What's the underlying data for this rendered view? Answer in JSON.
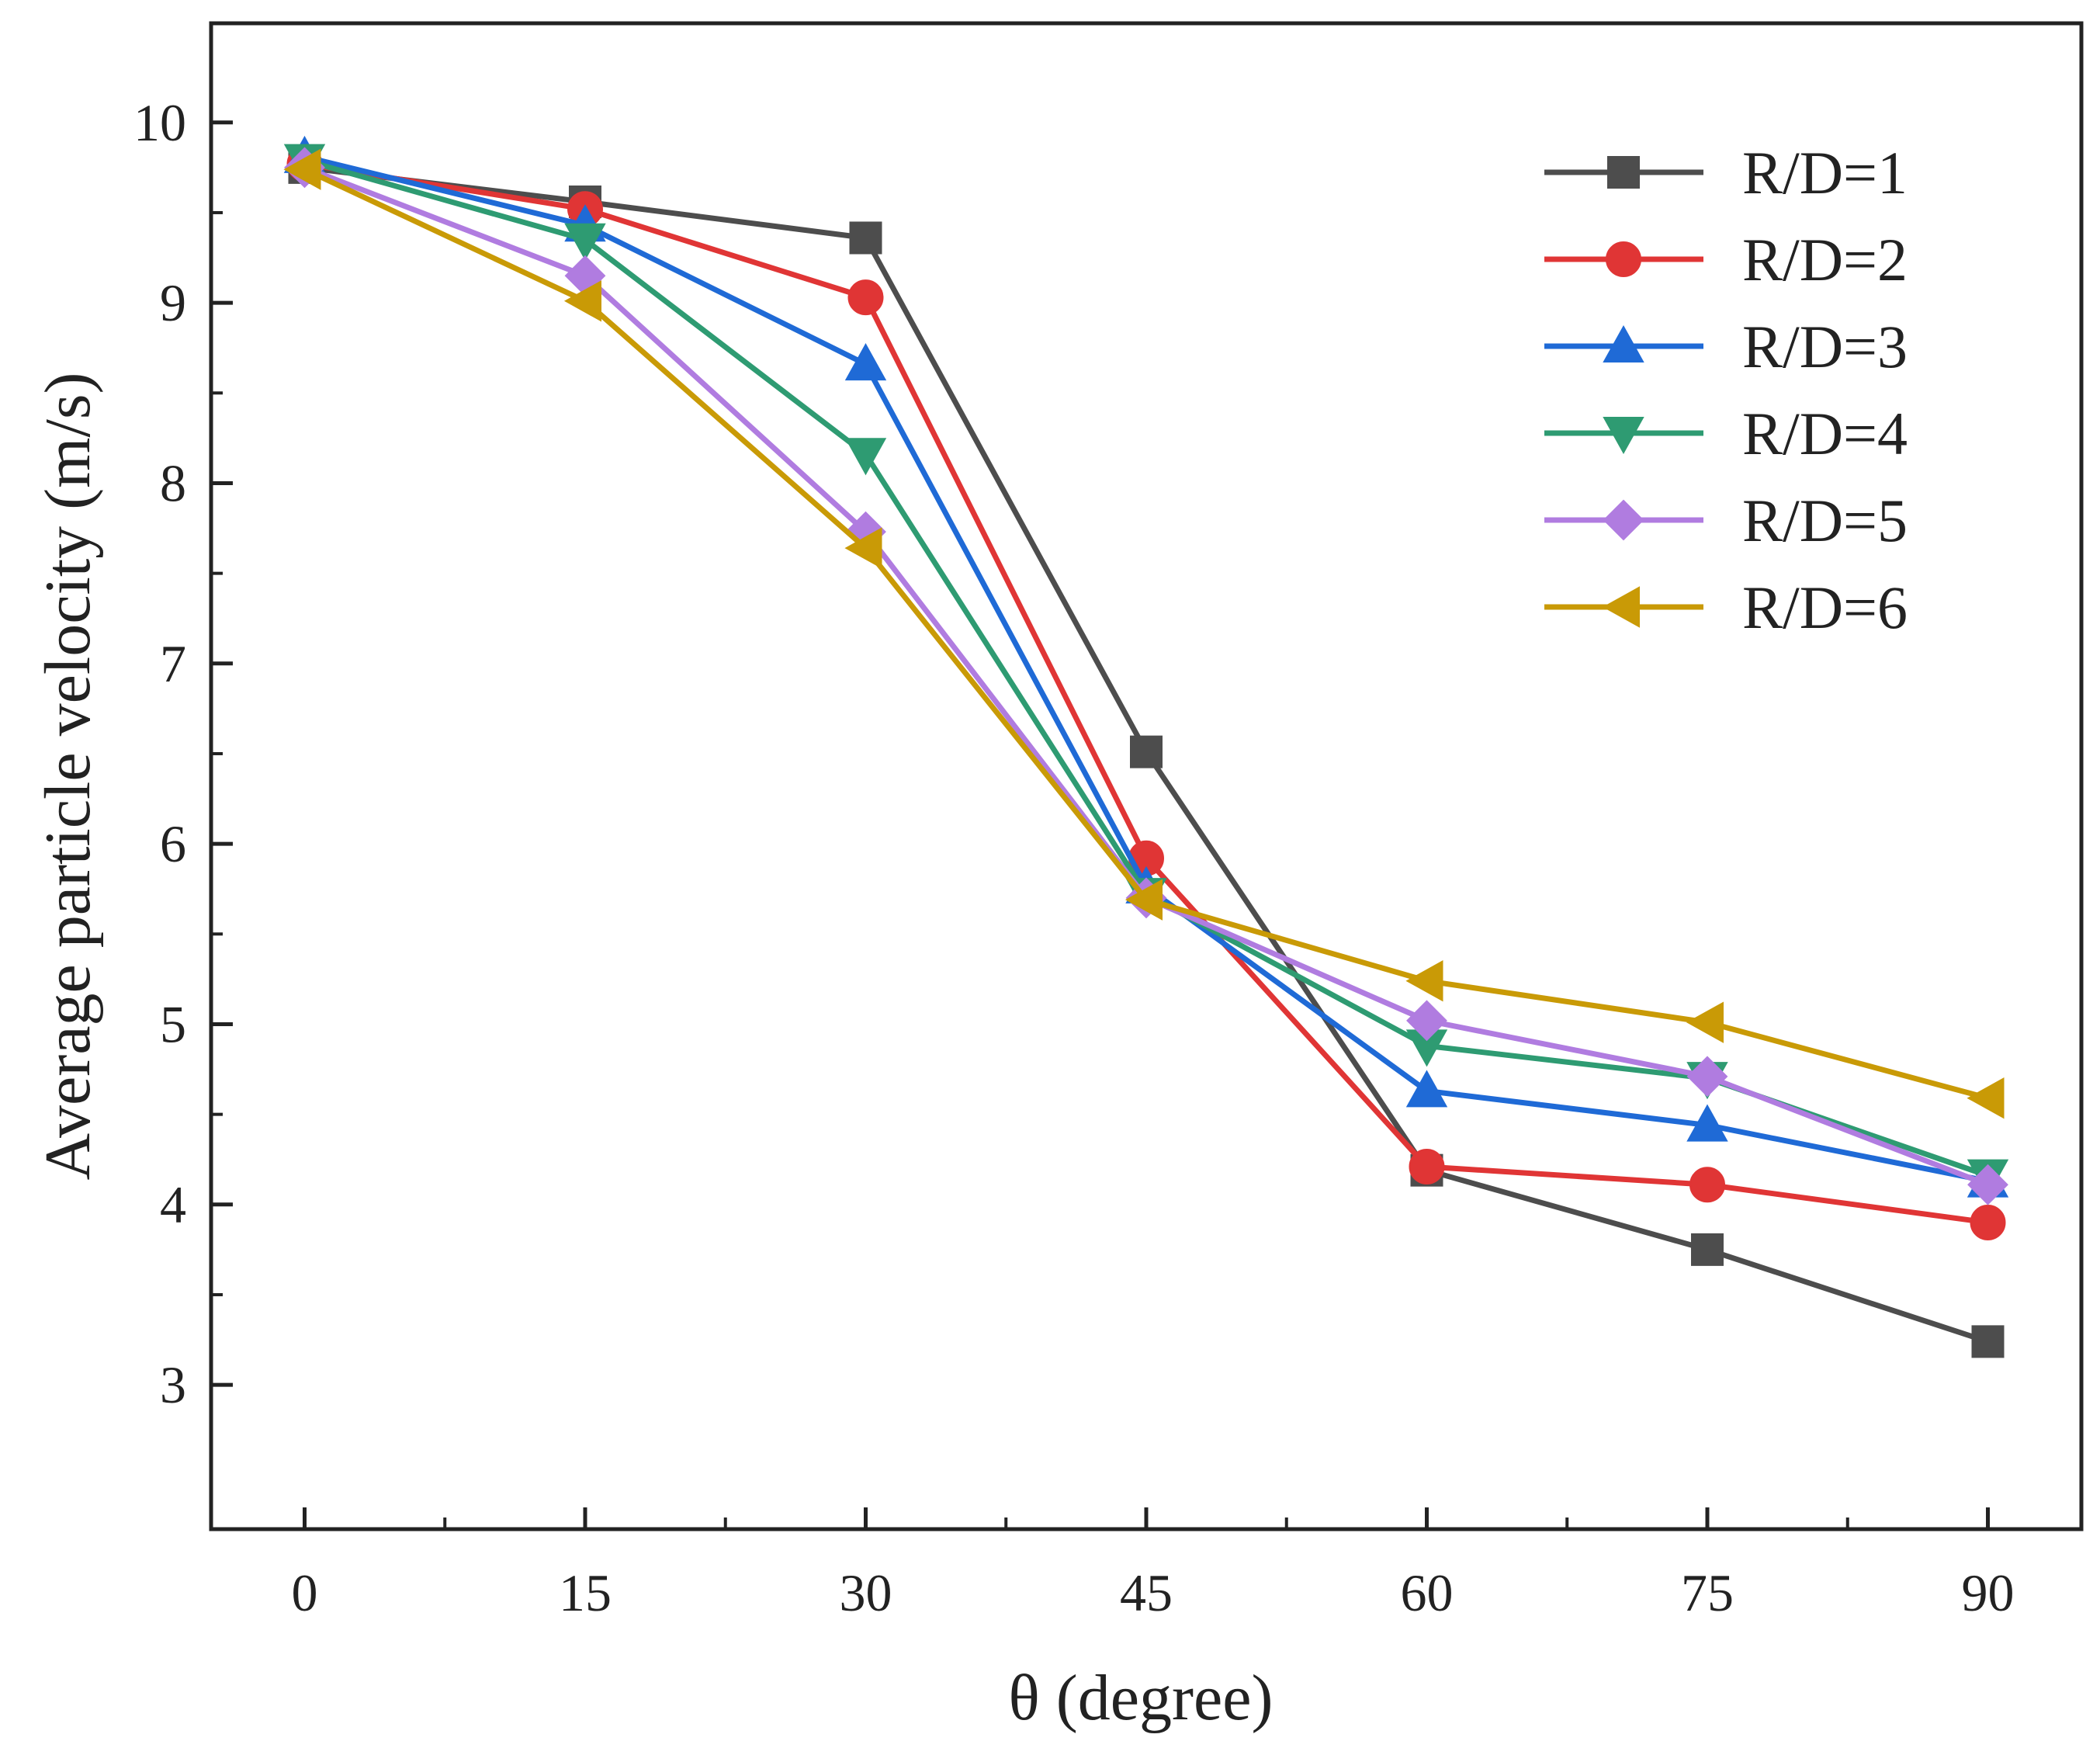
{
  "chart_data": {
    "type": "line",
    "title": "",
    "xlabel": "θ (degree)",
    "ylabel": "Average particle velocity (m/s)",
    "x": [
      0,
      15,
      30,
      45,
      60,
      75,
      90
    ],
    "x_ticks": [
      0,
      15,
      30,
      45,
      60,
      75,
      90
    ],
    "xlim": [
      -5,
      95
    ],
    "ylim": [
      2.2,
      10.55
    ],
    "y_ticks": [
      3,
      4,
      5,
      6,
      7,
      8,
      9,
      10
    ],
    "grid": false,
    "legend_position": "top-right",
    "series": [
      {
        "name": "R/D=1",
        "color": "#4d4d4d",
        "marker": "square",
        "values": [
          9.75,
          9.56,
          9.36,
          6.51,
          4.19,
          3.75,
          3.24
        ]
      },
      {
        "name": "R/D=2",
        "color": "#e03535",
        "marker": "circle",
        "values": [
          9.77,
          9.52,
          9.03,
          5.92,
          4.21,
          4.11,
          3.9
        ]
      },
      {
        "name": "R/D=3",
        "color": "#1f6ad6",
        "marker": "triangle-up",
        "values": [
          9.81,
          9.43,
          8.66,
          5.76,
          4.63,
          4.44,
          4.13
        ]
      },
      {
        "name": "R/D=4",
        "color": "#2e9b72",
        "marker": "triangle-down",
        "values": [
          9.79,
          9.35,
          8.16,
          5.72,
          4.88,
          4.7,
          4.16
        ]
      },
      {
        "name": "R/D=5",
        "color": "#b07ce0",
        "marker": "diamond",
        "values": [
          9.75,
          9.15,
          7.73,
          5.7,
          5.02,
          4.71,
          4.11
        ]
      },
      {
        "name": "R/D=6",
        "color": "#c99a06",
        "marker": "triangle-left",
        "values": [
          9.74,
          9.01,
          7.64,
          5.69,
          5.24,
          5.01,
          4.59
        ]
      }
    ]
  }
}
